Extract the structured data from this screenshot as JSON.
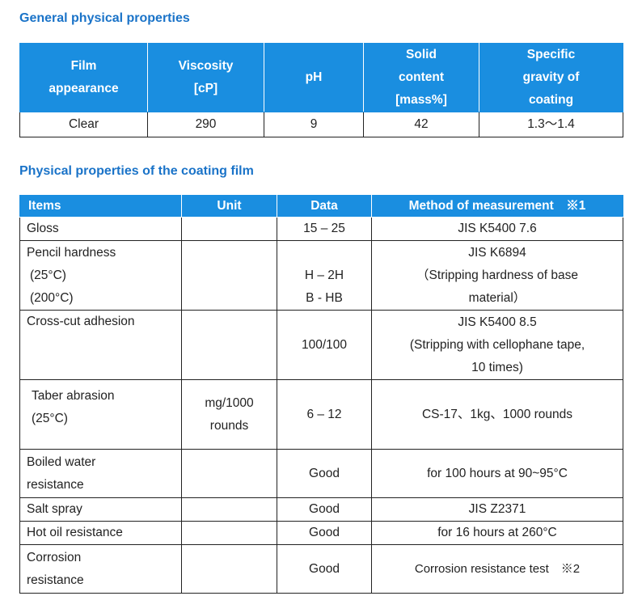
{
  "general": {
    "heading": "General physical properties",
    "headers": [
      [
        "Film",
        "appearance"
      ],
      [
        "Viscosity",
        "[cP]"
      ],
      [
        "pH"
      ],
      [
        "Solid",
        "content",
        "[mass%]"
      ],
      [
        "Specific",
        "gravity of",
        "coating"
      ]
    ],
    "row": [
      "Clear",
      "290",
      "9",
      "42",
      "1.3～1.4"
    ]
  },
  "film": {
    "heading": "Physical properties of the coating film",
    "headers": [
      "Items",
      "Unit",
      "Data",
      "Method of measurement　※1"
    ],
    "rows": [
      {
        "item": [
          "Gloss"
        ],
        "unit": [],
        "data": [
          "15 – 25"
        ],
        "method": [
          "JIS K5400 7.6"
        ]
      },
      {
        "item": [
          "Pencil hardness",
          "(25°C)",
          "(200°C)"
        ],
        "unit": [],
        "data": [
          "H – 2H",
          "B - HB"
        ],
        "method": [
          "JIS K6894",
          "（Stripping hardness of base",
          "material）"
        ]
      },
      {
        "item": [
          "Cross-cut adhesion"
        ],
        "unit": [],
        "data": [
          "100/100"
        ],
        "method": [
          "JIS K5400 8.5",
          "(Stripping with cellophane tape,",
          "10 times)"
        ]
      },
      {
        "item": [
          "Taber abrasion",
          "(25°C)"
        ],
        "unit": [
          "mg/1000",
          "rounds"
        ],
        "data": [
          "6 – 12"
        ],
        "method": [
          "CS-17、1kg、1000 rounds"
        ]
      },
      {
        "item": [
          "Boiled water",
          "resistance"
        ],
        "unit": [],
        "data": [
          "Good"
        ],
        "method": [
          "for 100 hours at 90~95°C"
        ]
      },
      {
        "item": [
          "Salt spray"
        ],
        "unit": [],
        "data": [
          "Good"
        ],
        "method": [
          "JIS Z2371"
        ]
      },
      {
        "item": [
          "Hot oil resistance"
        ],
        "unit": [],
        "data": [
          "Good"
        ],
        "method": [
          "for 16 hours at 260°C"
        ]
      },
      {
        "item": [
          "Corrosion",
          "resistance"
        ],
        "unit": [],
        "data": [
          "Good"
        ],
        "method": [
          "Corrosion resistance test　※2"
        ]
      }
    ]
  },
  "colors": {
    "heading": "#1a73c8",
    "header_bg": "#1a8ee0",
    "header_text": "#ffffff"
  }
}
